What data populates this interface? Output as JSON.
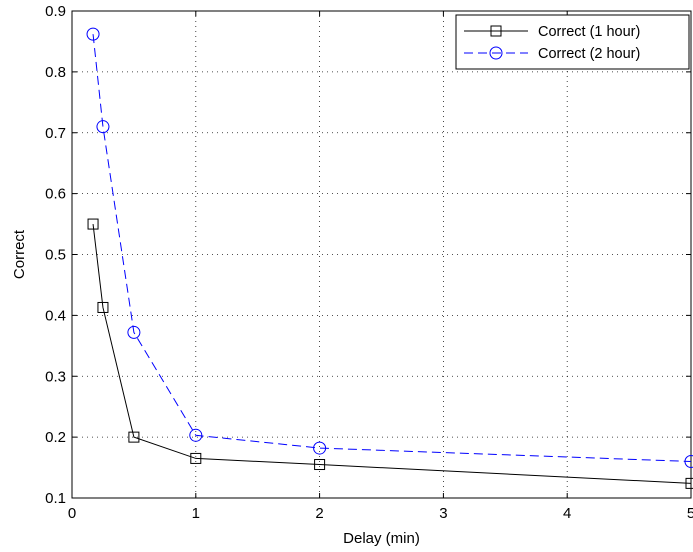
{
  "chart_data": {
    "type": "line",
    "title": "",
    "xlabel": "Delay (min)",
    "ylabel": "Correct",
    "xlim": [
      0,
      5
    ],
    "ylim": [
      0.1,
      0.9
    ],
    "xticks": [
      0,
      1,
      2,
      3,
      4,
      5
    ],
    "xtick_labels": [
      "0",
      "1",
      "2",
      "3",
      "4",
      "5"
    ],
    "yticks": [
      0.1,
      0.2,
      0.3,
      0.4,
      0.5,
      0.6,
      0.7,
      0.8,
      0.9
    ],
    "ytick_labels": [
      "0.1",
      "0.2",
      "0.3",
      "0.4",
      "0.5",
      "0.6",
      "0.7",
      "0.8",
      "0.9"
    ],
    "grid": true,
    "legend_position": "top-right",
    "series": [
      {
        "name": "Correct (1 hour)",
        "color": "#000000",
        "line_style": "solid",
        "marker": "square",
        "x": [
          0.17,
          0.25,
          0.5,
          1,
          2,
          5
        ],
        "y": [
          0.55,
          0.413,
          0.2,
          0.165,
          0.155,
          0.124
        ]
      },
      {
        "name": "Correct (2 hour)",
        "color": "#0000ff",
        "line_style": "dashed",
        "marker": "circle",
        "x": [
          0.17,
          0.25,
          0.5,
          1,
          2,
          5
        ],
        "y": [
          0.862,
          0.71,
          0.372,
          0.203,
          0.182,
          0.16
        ]
      }
    ]
  }
}
